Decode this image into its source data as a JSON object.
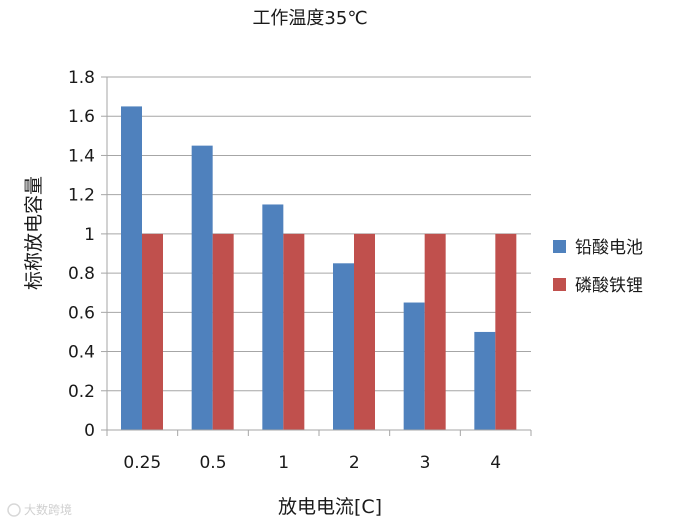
{
  "chart_data": {
    "type": "bar",
    "title": "工作温度35℃",
    "xlabel": "放电电流[C]",
    "ylabel": "标称放电容量",
    "categories": [
      "0.25",
      "0.5",
      "1",
      "2",
      "3",
      "4"
    ],
    "series": [
      {
        "name": "铅酸电池",
        "color": "#4f81bd",
        "values": [
          1.65,
          1.45,
          1.15,
          0.85,
          0.65,
          0.5
        ]
      },
      {
        "name": "磷酸铁锂",
        "color": "#c0504d",
        "values": [
          1.0,
          1.0,
          1.0,
          1.0,
          1.0,
          1.0
        ]
      }
    ],
    "ylim": [
      0,
      1.8
    ],
    "yticks": [
      "0",
      "0.2",
      "0.4",
      "0.6",
      "0.8",
      "1",
      "1.2",
      "1.4",
      "1.6",
      "1.8"
    ],
    "grid": true,
    "legend_position": "right"
  },
  "watermark": "大数跨境",
  "colors": {
    "gridline": "#a6a6a6",
    "axis": "#a6a6a6"
  }
}
